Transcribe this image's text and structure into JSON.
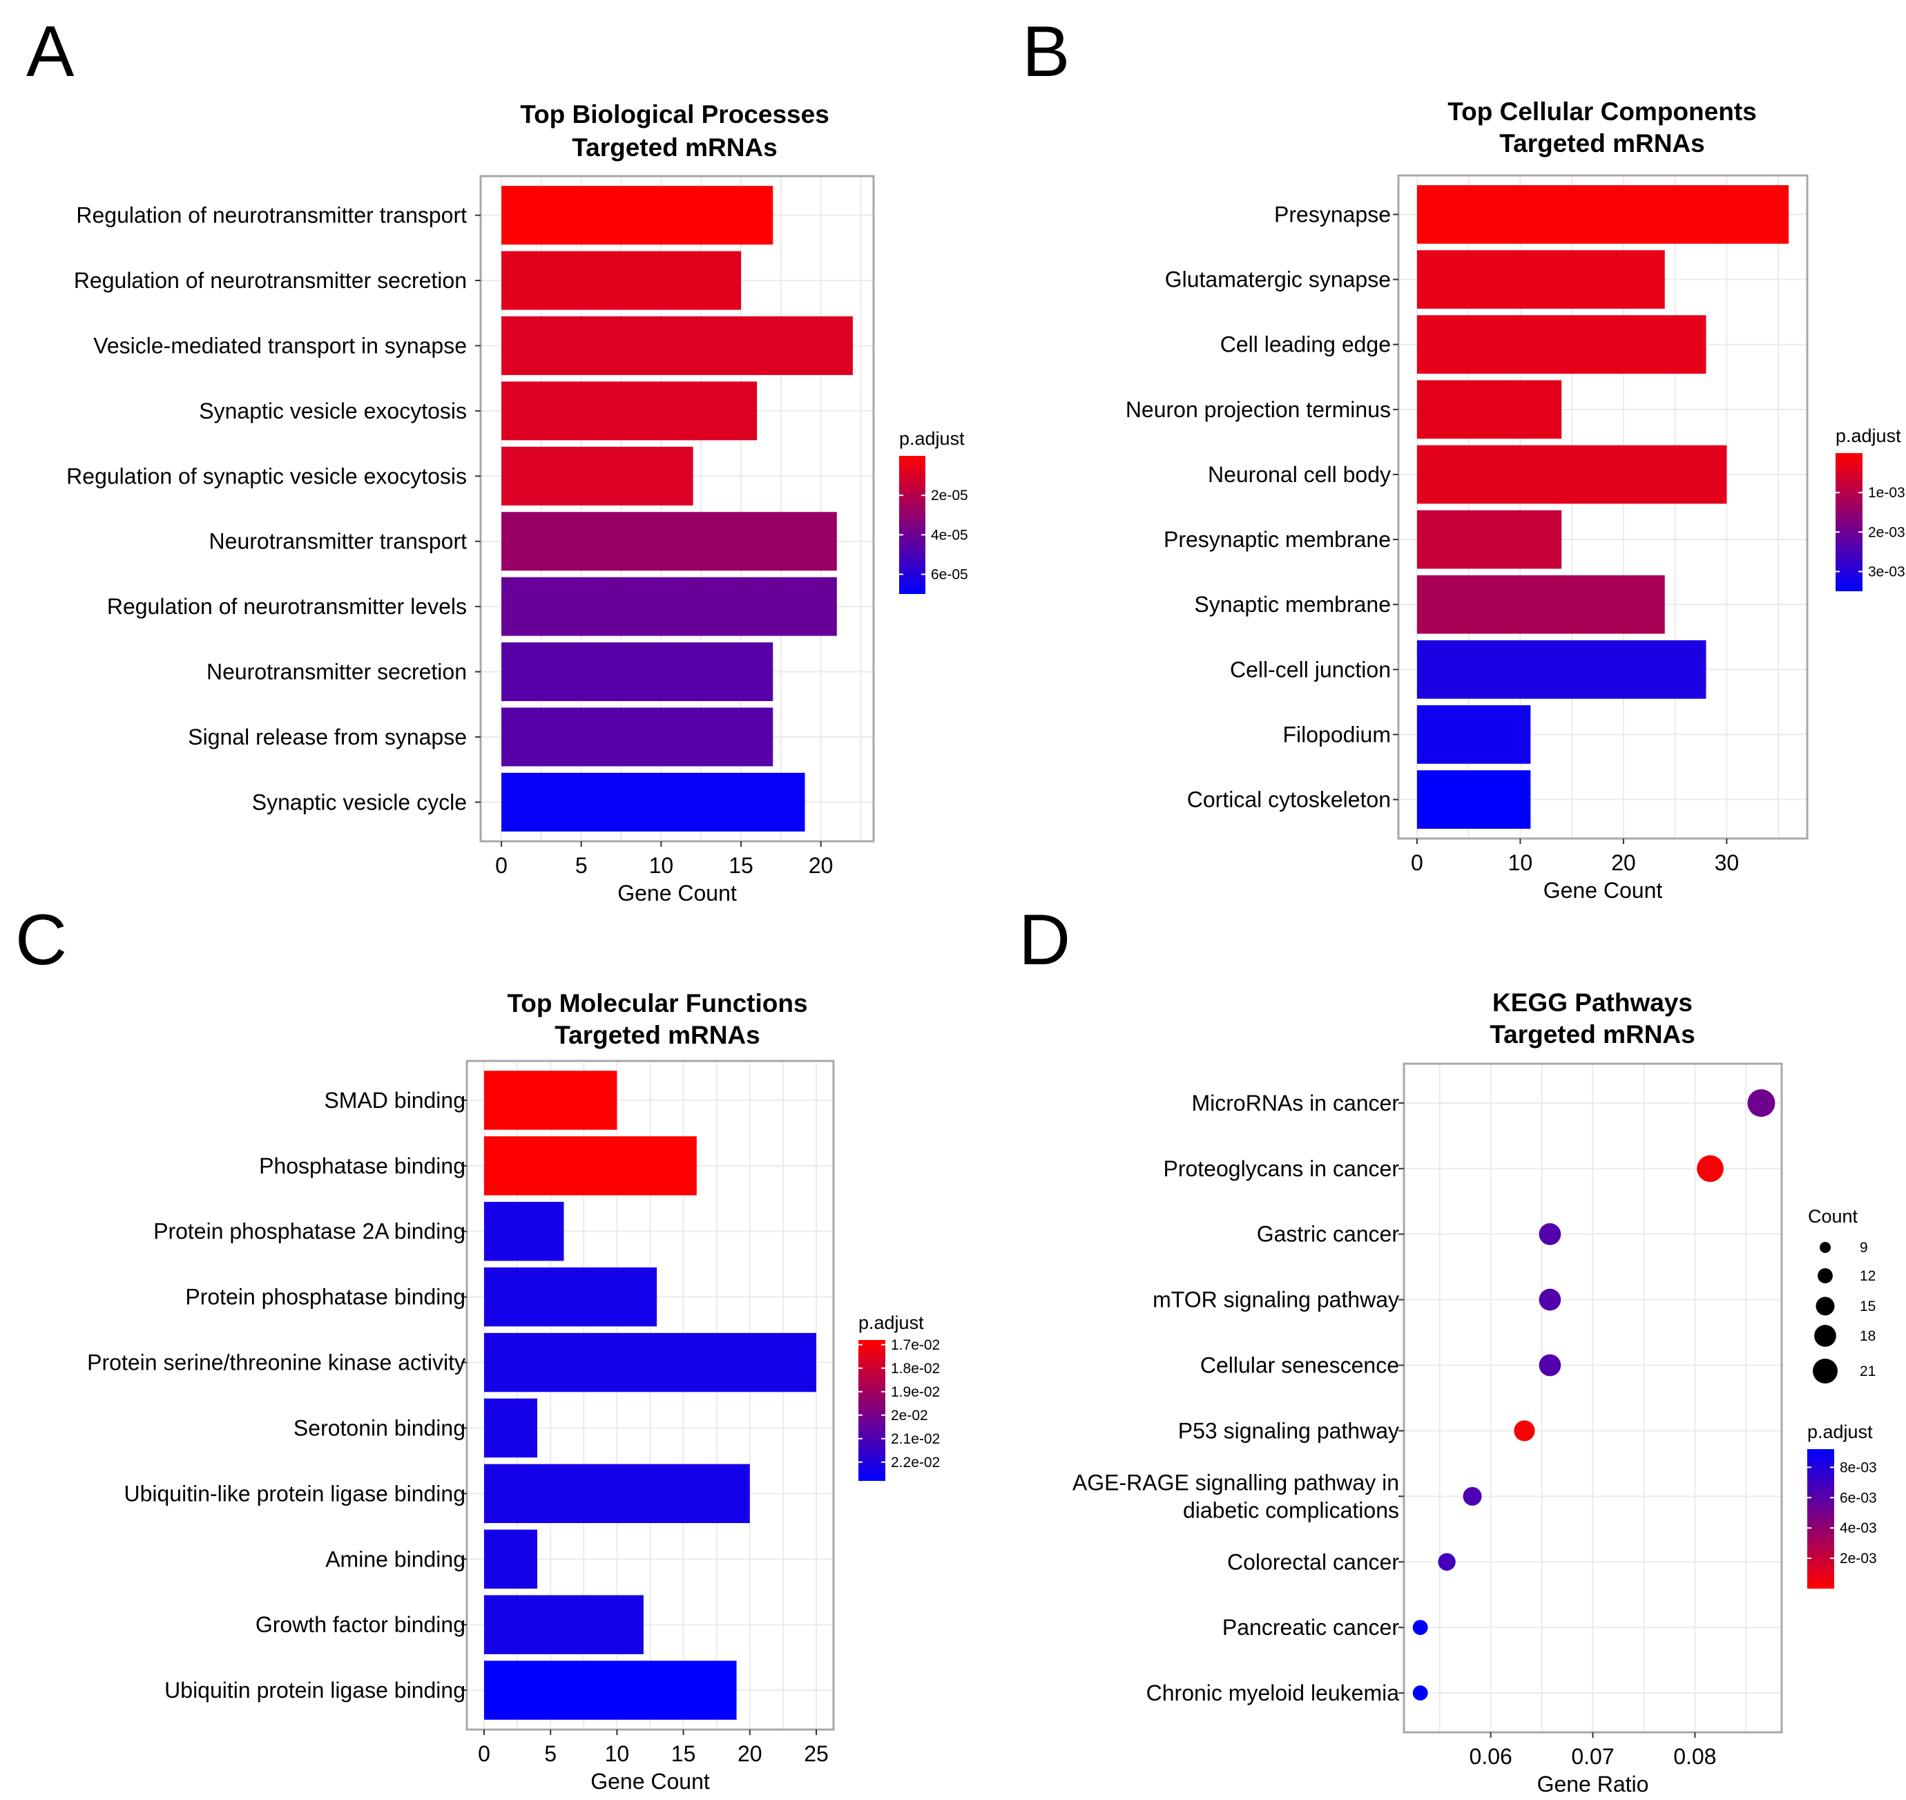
{
  "colors": {
    "high": "#ff0000",
    "low": "#0000ff",
    "grid": "#ebebeb",
    "frame": "#a8a8a8"
  },
  "chart_data": [
    {
      "id": "A",
      "panel_label": "A",
      "type": "bar",
      "orientation": "horizontal",
      "title": [
        "Top Biological Processes",
        "Targeted mRNAs"
      ],
      "xlabel": "Gene Count",
      "ylabel": "",
      "xlim": [
        -1.3,
        23.3
      ],
      "xticks": [
        0,
        5,
        10,
        15,
        20
      ],
      "categories": [
        "Regulation of neurotransmitter transport",
        "Regulation of neurotransmitter secretion",
        "Vesicle-mediated transport in synapse",
        "Synaptic vesicle exocytosis",
        "Regulation of synaptic vesicle exocytosis",
        "Neurotransmitter transport",
        "Regulation of neurotransmitter levels",
        "Neurotransmitter secretion",
        "Signal release from synapse",
        "Synaptic vesicle cycle"
      ],
      "values": [
        17,
        15,
        22,
        16,
        12,
        21,
        21,
        17,
        17,
        19
      ],
      "color_values": [
        0.0,
        8e-06,
        9e-06,
        9e-06,
        1e-05,
        2.8e-05,
        4.2e-05,
        4.6e-05,
        4.6e-05,
        6.8e-05
      ],
      "legend": {
        "title": "p.adjust",
        "range": [
          0.0,
          7e-05
        ],
        "ticks": [
          2e-05,
          4e-05,
          6e-05
        ],
        "tick_labels": [
          "2e-05",
          "4e-05",
          "6e-05"
        ],
        "low_value_color": "red"
      }
    },
    {
      "id": "B",
      "panel_label": "B",
      "type": "bar",
      "orientation": "horizontal",
      "title": [
        "Top Cellular Components",
        "Targeted mRNAs"
      ],
      "xlabel": "Gene Count",
      "ylabel": "",
      "xlim": [
        -1.8,
        37.8
      ],
      "xticks": [
        0,
        10,
        20,
        30
      ],
      "categories": [
        "Presynapse",
        "Glutamatergic synapse",
        "Cell leading edge",
        "Neuron projection terminus",
        "Neuronal cell body",
        "Presynaptic membrane",
        "Synaptic membrane",
        "Cell-cell junction",
        "Filopodium",
        "Cortical cytoskeleton"
      ],
      "values": [
        36,
        24,
        28,
        14,
        30,
        14,
        24,
        28,
        11,
        11
      ],
      "color_values": [
        4e-05,
        0.00032,
        0.00035,
        0.00036,
        0.0004,
        0.00078,
        0.00118,
        0.00312,
        0.0033,
        0.0038
      ],
      "legend": {
        "title": "p.adjust",
        "range": [
          0.0,
          0.0035
        ],
        "ticks": [
          0.001,
          0.002,
          0.003
        ],
        "tick_labels": [
          "1e-03",
          "2e-03",
          "3e-03"
        ],
        "low_value_color": "red"
      }
    },
    {
      "id": "C",
      "panel_label": "C",
      "type": "bar",
      "orientation": "horizontal",
      "title": [
        "Top Molecular Functions",
        "Targeted mRNAs"
      ],
      "xlabel": "Gene Count",
      "ylabel": "",
      "xlim": [
        -1.3,
        26.3
      ],
      "xticks": [
        0,
        5,
        10,
        15,
        20,
        25
      ],
      "categories": [
        "SMAD binding",
        "Phosphatase binding",
        "Protein phosphatase 2A binding",
        "Protein phosphatase binding",
        "Protein serine/threonine kinase activity",
        "Serotonin binding",
        "Ubiquitin-like protein ligase binding",
        "Amine binding",
        "Growth factor binding",
        "Ubiquitin protein ligase binding"
      ],
      "values": [
        10,
        16,
        6,
        13,
        25,
        4,
        20,
        4,
        12,
        19
      ],
      "color_values": [
        0.0168,
        0.0168,
        0.0223,
        0.0223,
        0.0223,
        0.0223,
        0.0223,
        0.0223,
        0.0223,
        0.0228
      ],
      "legend": {
        "title": "p.adjust",
        "range": [
          0.0168,
          0.0228
        ],
        "ticks": [
          0.017,
          0.018,
          0.019,
          0.02,
          0.021,
          0.022
        ],
        "tick_labels": [
          "1.7e-02",
          "1.8e-02",
          "1.9e-02",
          "2e-02",
          "2.1e-02",
          "2.2e-02"
        ],
        "low_value_color": "red"
      }
    },
    {
      "id": "D",
      "panel_label": "D",
      "type": "scatter",
      "title": [
        "KEGG Pathways",
        "Targeted mRNAs"
      ],
      "xlabel": "Gene Ratio",
      "ylabel": "",
      "xlim": [
        0.0515,
        0.0885
      ],
      "xticks": [
        0.06,
        0.07,
        0.08
      ],
      "xtick_labels": [
        "0.06",
        "0.07",
        "0.08"
      ],
      "categories": [
        "MicroRNAs in cancer",
        "Proteoglycans in cancer",
        "Gastric cancer",
        "mTOR signaling pathway",
        "Cellular senescence",
        "P53 signaling pathway",
        "AGE-RAGE signalling pathway in diabetic complications",
        "Colorectal cancer",
        "Pancreatic cancer",
        "Chronic myeloid leukemia"
      ],
      "category_lines": [
        [
          "MicroRNAs in cancer"
        ],
        [
          "Proteoglycans in cancer"
        ],
        [
          "Gastric cancer"
        ],
        [
          "mTOR signaling pathway"
        ],
        [
          "Cellular senescence"
        ],
        [
          "P53 signaling pathway"
        ],
        [
          "AGE-RAGE signalling pathway in",
          "diabetic complications"
        ],
        [
          "Colorectal cancer"
        ],
        [
          "Pancreatic cancer"
        ],
        [
          "Chronic myeloid leukemia"
        ]
      ],
      "x": [
        0.0865,
        0.0815,
        0.0658,
        0.0658,
        0.0658,
        0.0633,
        0.0582,
        0.0557,
        0.0531,
        0.0531
      ],
      "count": [
        24,
        23,
        18,
        18,
        18,
        17,
        15,
        14,
        12,
        12
      ],
      "color_values": [
        0.0052,
        0.0002,
        0.0062,
        0.0062,
        0.0062,
        0.0002,
        0.0065,
        0.0068,
        0.0092,
        0.0092
      ],
      "size_legend": {
        "title": "Count",
        "values": [
          9,
          12,
          15,
          18,
          21
        ],
        "labels": [
          "9",
          "12",
          "15",
          "18",
          "21"
        ]
      },
      "legend": {
        "title": "p.adjust",
        "range": [
          0.0,
          0.0092
        ],
        "ticks": [
          0.002,
          0.004,
          0.006,
          0.008
        ],
        "tick_labels": [
          "2e-03",
          "4e-03",
          "6e-03",
          "8e-03"
        ],
        "low_value_color": "red"
      }
    }
  ]
}
